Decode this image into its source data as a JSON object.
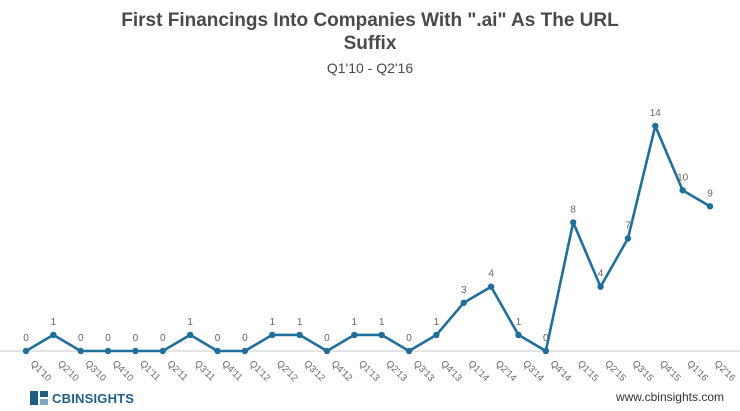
{
  "chart_data": {
    "type": "line",
    "title_line1": "First Financings Into Companies With \".ai\" As The URL",
    "title_line2": "Suffix",
    "subtitle": "Q1'10 - Q2'16",
    "categories": [
      "Q1'10",
      "Q2'10",
      "Q3'10",
      "Q4'10",
      "Q1'11",
      "Q2'11",
      "Q3'11",
      "Q4'11",
      "Q1'12",
      "Q2'12",
      "Q3'12",
      "Q4'12",
      "Q1'13",
      "Q2'13",
      "Q3'13",
      "Q4'13",
      "Q1'14",
      "Q2'14",
      "Q3'14",
      "Q4'14",
      "Q1'15",
      "Q2'15",
      "Q3'15",
      "Q4'15",
      "Q1'16",
      "Q2'16"
    ],
    "values": [
      0,
      1,
      0,
      0,
      0,
      0,
      1,
      0,
      0,
      1,
      1,
      0,
      1,
      1,
      0,
      1,
      3,
      4,
      1,
      0,
      8,
      4,
      7,
      14,
      10,
      9
    ],
    "ylim": [
      0,
      14
    ],
    "grid": false,
    "line_color": "#1f6f9a"
  },
  "footer": {
    "brand_prefix": "CB",
    "brand_suffix": "INSIGHTS",
    "url": "www.cbinsights.com"
  }
}
